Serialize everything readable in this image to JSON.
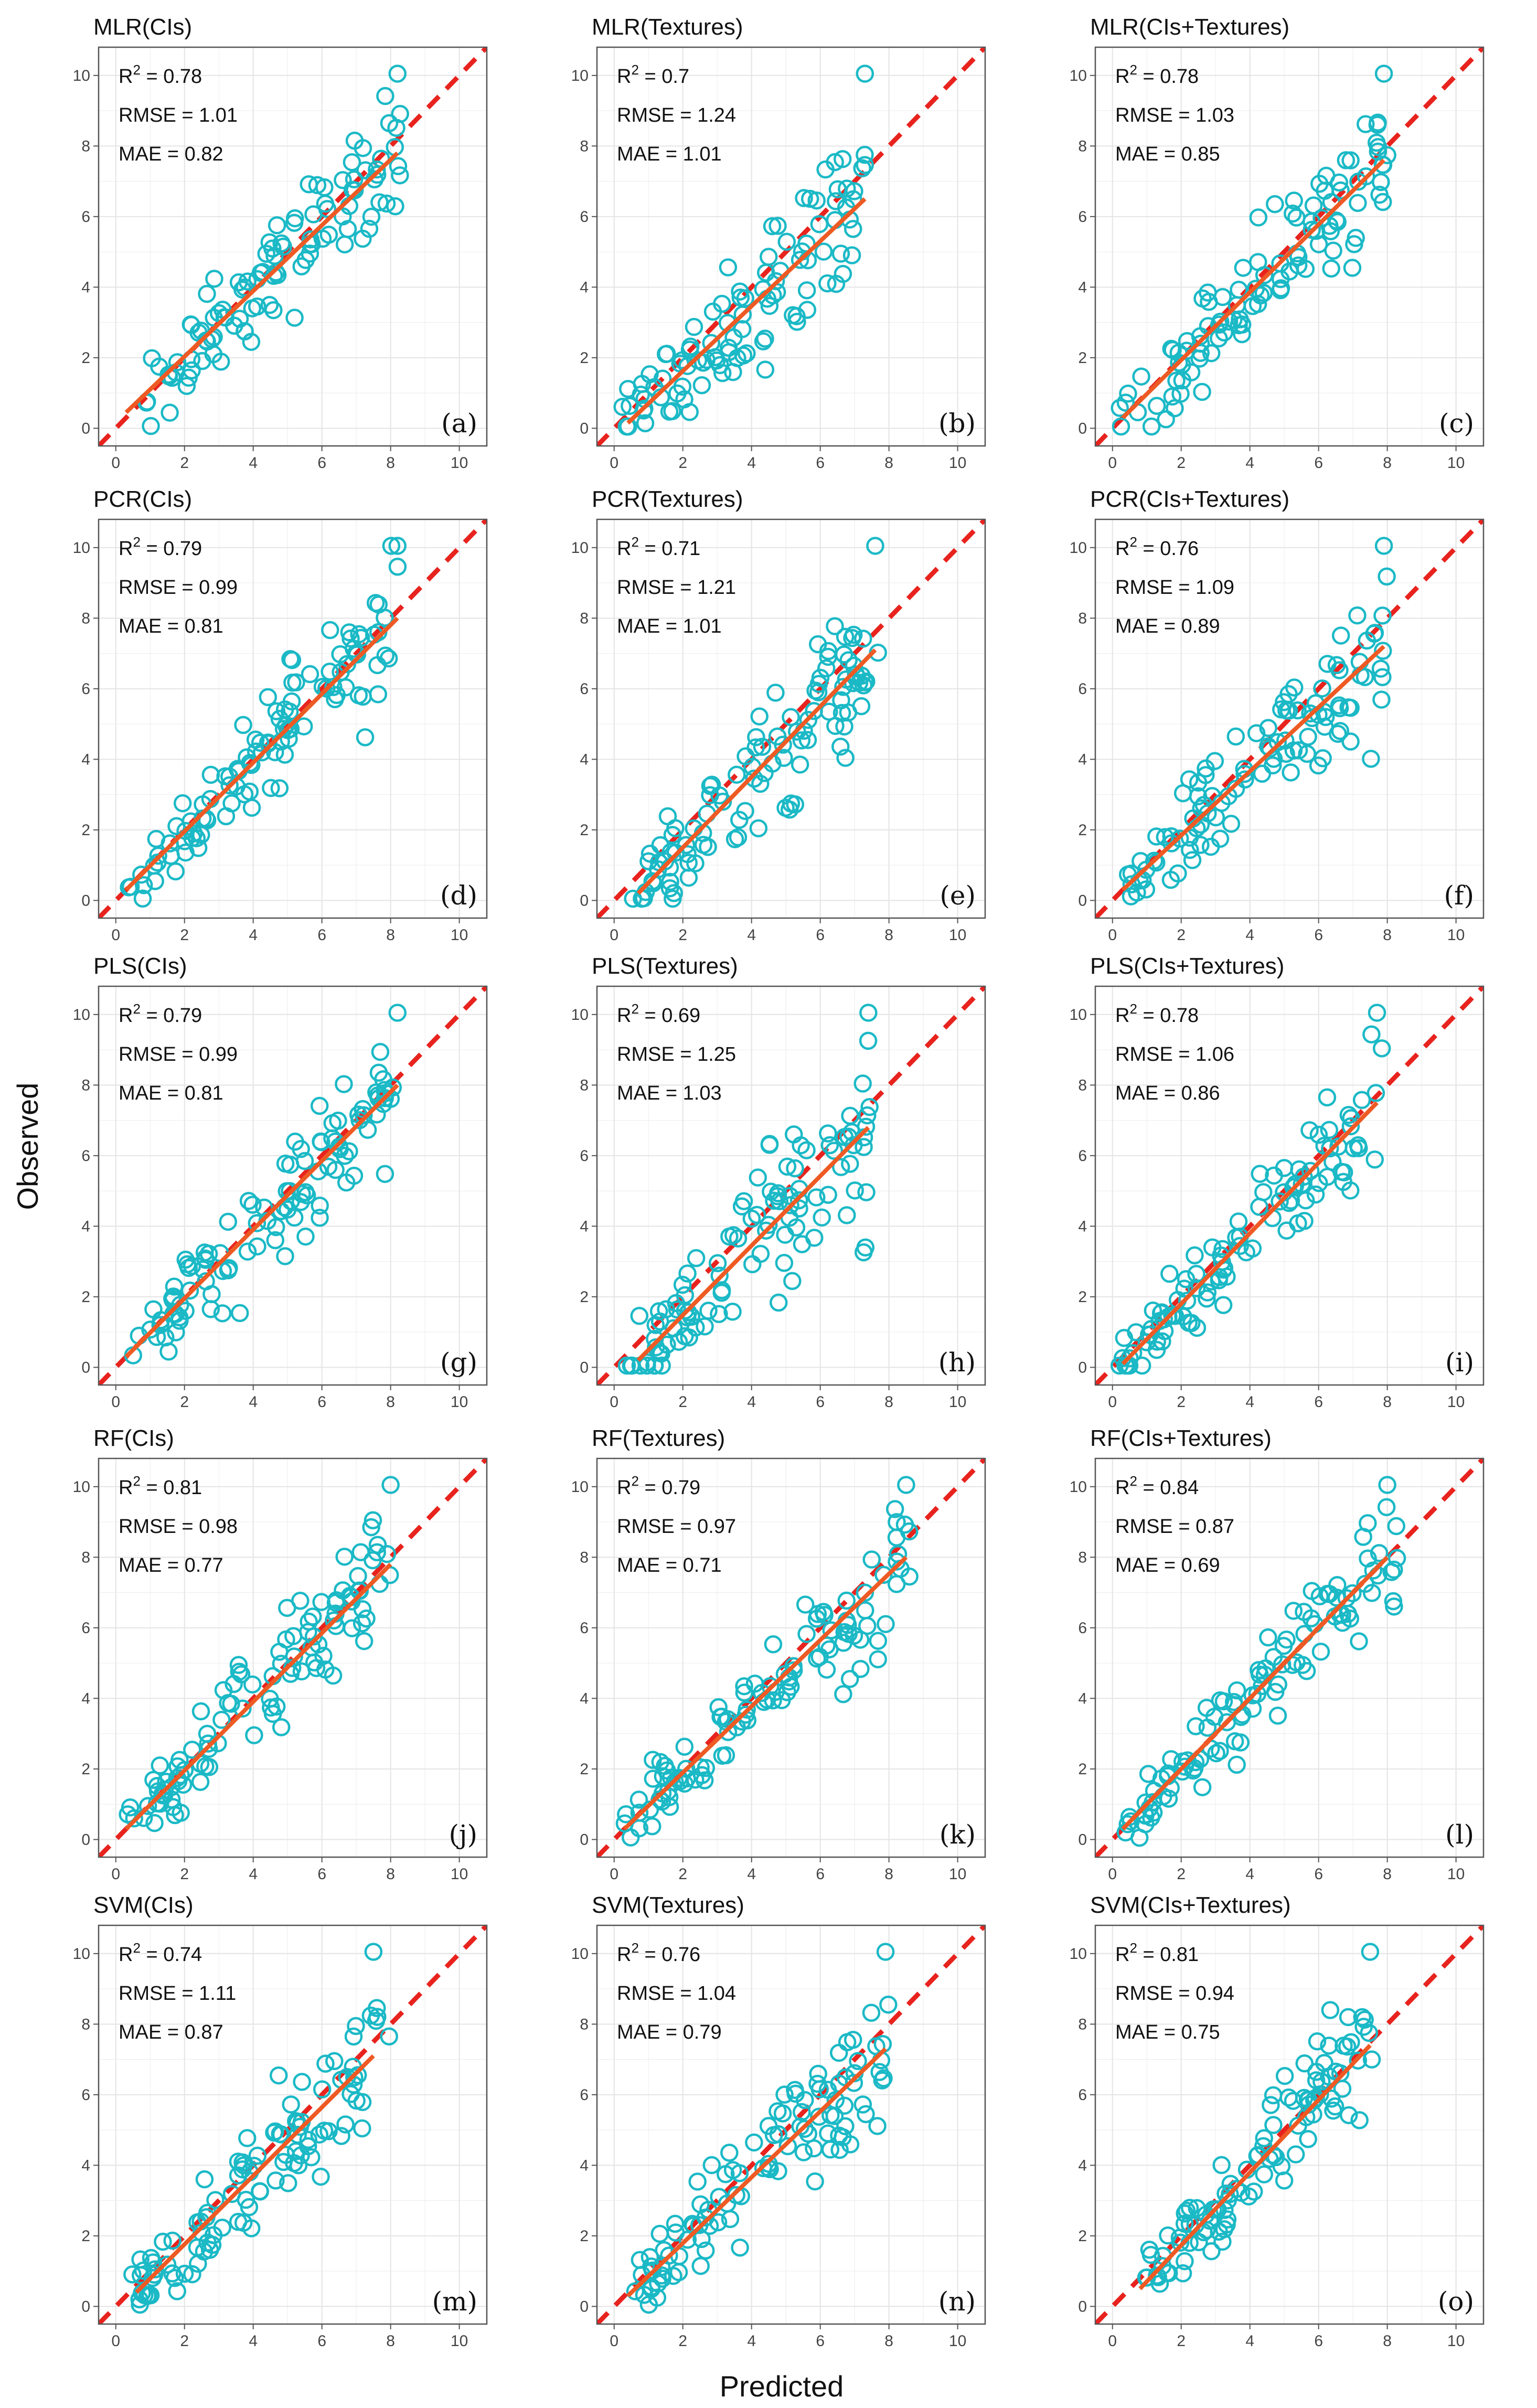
{
  "xlabel": "Predicted",
  "ylabel": "Observed",
  "colors": {
    "points": "#1bb9c6",
    "fit": "#ee5a24",
    "identity": "#e8231e",
    "grid": "#e4e4e4",
    "frame": "#555555"
  },
  "stat_labels": {
    "r2_prefix": "R",
    "r2_sup": "2",
    "eq": " = ",
    "rmse": "RMSE = ",
    "mae": "MAE = "
  },
  "chart_data": [
    {
      "type": "scatter",
      "title": "MLR(CIs)",
      "letter": "(a)",
      "r2": "0.78",
      "rmse": "1.01",
      "mae": "0.82",
      "xlim": [
        -0.5,
        10.8
      ],
      "ylim": [
        -0.5,
        10.8
      ],
      "ticks": [
        0,
        2,
        4,
        6,
        8,
        10
      ],
      "fit": [
        [
          0.3,
          0.45
        ],
        [
          8.2,
          7.8
        ]
      ],
      "xrange": [
        0.3,
        8.3
      ],
      "seed": 11
    },
    {
      "type": "scatter",
      "title": "MLR(Textures)",
      "letter": "(b)",
      "r2": "0.7",
      "rmse": "1.24",
      "mae": "1.01",
      "xlim": [
        -0.5,
        10.8
      ],
      "ylim": [
        -0.5,
        10.8
      ],
      "ticks": [
        0,
        2,
        4,
        6,
        8,
        10
      ],
      "fit": [
        [
          0.4,
          0.15
        ],
        [
          7.3,
          6.5
        ]
      ],
      "xrange": [
        0.2,
        7.4
      ],
      "seed": 12
    },
    {
      "type": "scatter",
      "title": "MLR(CIs+Textures)",
      "letter": "(c)",
      "r2": "0.78",
      "rmse": "1.03",
      "mae": "0.85",
      "xlim": [
        -0.5,
        10.8
      ],
      "ylim": [
        -0.5,
        10.8
      ],
      "ticks": [
        0,
        2,
        4,
        6,
        8,
        10
      ],
      "fit": [
        [
          0.3,
          0.3
        ],
        [
          7.9,
          7.6
        ]
      ],
      "xrange": [
        0.1,
        8.0
      ],
      "seed": 13
    },
    {
      "type": "scatter",
      "title": "PCR(CIs)",
      "letter": "(d)",
      "r2": "0.79",
      "rmse": "0.99",
      "mae": "0.81",
      "xlim": [
        -0.5,
        10.8
      ],
      "ylim": [
        -0.5,
        10.8
      ],
      "ticks": [
        0,
        2,
        4,
        6,
        8,
        10
      ],
      "fit": [
        [
          0.3,
          0.3
        ],
        [
          8.2,
          8.0
        ]
      ],
      "xrange": [
        0.3,
        8.3
      ],
      "seed": 14
    },
    {
      "type": "scatter",
      "title": "PCR(Textures)",
      "letter": "(e)",
      "r2": "0.71",
      "rmse": "1.21",
      "mae": "1.01",
      "xlim": [
        -0.5,
        10.8
      ],
      "ylim": [
        -0.5,
        10.8
      ],
      "ticks": [
        0,
        2,
        4,
        6,
        8,
        10
      ],
      "fit": [
        [
          0.7,
          0.2
        ],
        [
          7.6,
          7.1
        ]
      ],
      "xrange": [
        0.3,
        7.7
      ],
      "seed": 15
    },
    {
      "type": "scatter",
      "title": "PCR(CIs+Textures)",
      "letter": "(f)",
      "r2": "0.76",
      "rmse": "1.09",
      "mae": "0.89",
      "xlim": [
        -0.5,
        10.8
      ],
      "ylim": [
        -0.5,
        10.8
      ],
      "ticks": [
        0,
        2,
        4,
        6,
        8,
        10
      ],
      "fit": [
        [
          0.3,
          0.3
        ],
        [
          7.9,
          7.2
        ]
      ],
      "xrange": [
        0.3,
        8.0
      ],
      "seed": 16
    },
    {
      "type": "scatter",
      "title": "PLS(CIs)",
      "letter": "(g)",
      "r2": "0.79",
      "rmse": "0.99",
      "mae": "0.81",
      "xlim": [
        -0.5,
        10.8
      ],
      "ylim": [
        -0.5,
        10.8
      ],
      "ticks": [
        0,
        2,
        4,
        6,
        8,
        10
      ],
      "fit": [
        [
          0.3,
          0.3
        ],
        [
          8.2,
          8.0
        ]
      ],
      "xrange": [
        0.3,
        8.3
      ],
      "seed": 17
    },
    {
      "type": "scatter",
      "title": "PLS(Textures)",
      "letter": "(h)",
      "r2": "0.69",
      "rmse": "1.25",
      "mae": "1.03",
      "xlim": [
        -0.5,
        10.8
      ],
      "ylim": [
        -0.5,
        10.8
      ],
      "ticks": [
        0,
        2,
        4,
        6,
        8,
        10
      ],
      "fit": [
        [
          0.7,
          0.2
        ],
        [
          7.4,
          6.8
        ]
      ],
      "xrange": [
        0.2,
        7.5
      ],
      "seed": 18
    },
    {
      "type": "scatter",
      "title": "PLS(CIs+Textures)",
      "letter": "(i)",
      "r2": "0.78",
      "rmse": "1.06",
      "mae": "0.86",
      "xlim": [
        -0.5,
        10.8
      ],
      "ylim": [
        -0.5,
        10.8
      ],
      "ticks": [
        0,
        2,
        4,
        6,
        8,
        10
      ],
      "fit": [
        [
          0.3,
          0.1
        ],
        [
          7.7,
          7.5
        ]
      ],
      "xrange": [
        0.0,
        7.9
      ],
      "seed": 19
    },
    {
      "type": "scatter",
      "title": "RF(CIs)",
      "letter": "(j)",
      "r2": "0.81",
      "rmse": "0.98",
      "mae": "0.77",
      "xlim": [
        -0.5,
        10.8
      ],
      "ylim": [
        -0.5,
        10.8
      ],
      "ticks": [
        0,
        2,
        4,
        6,
        8,
        10
      ],
      "fit": [
        [
          0.3,
          0.3
        ],
        [
          8.0,
          7.8
        ]
      ],
      "xrange": [
        0.3,
        8.0
      ],
      "seed": 20
    },
    {
      "type": "scatter",
      "title": "RF(Textures)",
      "letter": "(k)",
      "r2": "0.79",
      "rmse": "0.97",
      "mae": "0.71",
      "xlim": [
        -0.5,
        10.8
      ],
      "ylim": [
        -0.5,
        10.8
      ],
      "ticks": [
        0,
        2,
        4,
        6,
        8,
        10
      ],
      "fit": [
        [
          0.3,
          0.3
        ],
        [
          8.5,
          8.0
        ]
      ],
      "xrange": [
        0.3,
        8.6
      ],
      "seed": 21
    },
    {
      "type": "scatter",
      "title": "RF(CIs+Textures)",
      "letter": "(l)",
      "r2": "0.84",
      "rmse": "0.87",
      "mae": "0.69",
      "xlim": [
        -0.5,
        10.8
      ],
      "ylim": [
        -0.5,
        10.8
      ],
      "ticks": [
        0,
        2,
        4,
        6,
        8,
        10
      ],
      "fit": [
        [
          0.3,
          0.3
        ],
        [
          8.0,
          8.0
        ]
      ],
      "xrange": [
        0.3,
        8.3
      ],
      "seed": 22
    },
    {
      "type": "scatter",
      "title": "SVM(CIs)",
      "letter": "(m)",
      "r2": "0.74",
      "rmse": "1.11",
      "mae": "0.87",
      "xlim": [
        -0.5,
        10.8
      ],
      "ylim": [
        -0.5,
        10.8
      ],
      "ticks": [
        0,
        2,
        4,
        6,
        8,
        10
      ],
      "fit": [
        [
          0.6,
          0.4
        ],
        [
          7.5,
          7.1
        ]
      ],
      "xrange": [
        0.3,
        8.0
      ],
      "seed": 23
    },
    {
      "type": "scatter",
      "title": "SVM(Textures)",
      "letter": "(n)",
      "r2": "0.76",
      "rmse": "1.04",
      "mae": "0.79",
      "xlim": [
        -0.5,
        10.8
      ],
      "ylim": [
        -0.5,
        10.8
      ],
      "ticks": [
        0,
        2,
        4,
        6,
        8,
        10
      ],
      "fit": [
        [
          0.4,
          0.3
        ],
        [
          7.9,
          7.3
        ]
      ],
      "xrange": [
        0.4,
        8.0
      ],
      "seed": 24
    },
    {
      "type": "scatter",
      "title": "SVM(CIs+Textures)",
      "letter": "(o)",
      "r2": "0.81",
      "rmse": "0.94",
      "mae": "0.75",
      "xlim": [
        -0.5,
        10.8
      ],
      "ylim": [
        -0.5,
        10.8
      ],
      "ticks": [
        0,
        2,
        4,
        6,
        8,
        10
      ],
      "fit": [
        [
          0.8,
          0.5
        ],
        [
          7.5,
          7.4
        ]
      ],
      "xrange": [
        0.8,
        7.6
      ],
      "seed": 25
    }
  ]
}
